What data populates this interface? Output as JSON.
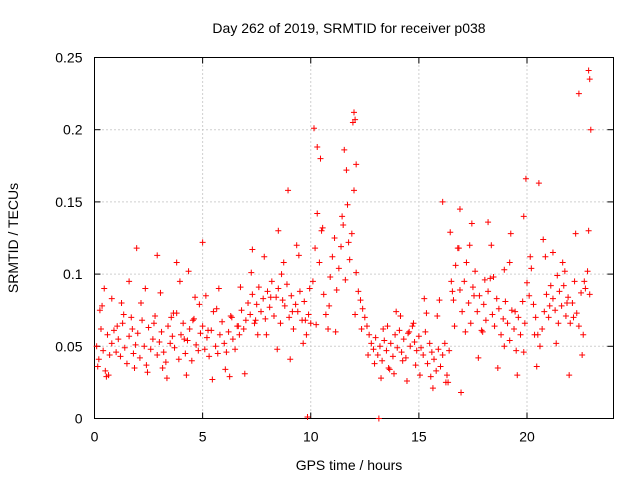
{
  "chart_data": {
    "type": "scatter",
    "title": "Day 262 of 2019, SRMTID for receiver p038",
    "xlabel": "GPS time / hours",
    "ylabel": "SRMTID / TECUs",
    "xlim": [
      0,
      24
    ],
    "ylim": [
      0,
      0.25
    ],
    "xticks": [
      0,
      5,
      10,
      15,
      20
    ],
    "xtick_labels": [
      "0",
      "5",
      "10",
      "15",
      "20"
    ],
    "yticks": [
      0,
      0.05,
      0.1,
      0.15,
      0.2,
      0.25
    ],
    "ytick_labels": [
      "0",
      "0.05",
      "0.1",
      "0.15",
      "0.2",
      "0.25"
    ],
    "grid": true,
    "legend": "none",
    "marker": "plus",
    "color": "#ff0000",
    "series": [
      {
        "name": "SRMTID",
        "x": [
          0.1,
          0.2,
          0.3,
          0.4,
          0.5,
          0.6,
          0.7,
          0.8,
          0.9,
          1.0,
          1.1,
          1.2,
          1.3,
          1.4,
          1.5,
          1.6,
          1.7,
          1.8,
          1.9,
          2.0,
          2.1,
          2.2,
          2.3,
          2.4,
          2.5,
          2.6,
          2.7,
          2.8,
          2.9,
          3.0,
          3.1,
          3.2,
          3.3,
          3.4,
          3.5,
          3.6,
          3.7,
          3.8,
          3.9,
          4.0,
          4.1,
          4.2,
          4.3,
          4.4,
          4.5,
          4.6,
          4.7,
          4.8,
          4.9,
          5.0,
          5.1,
          5.2,
          5.3,
          5.4,
          5.5,
          5.6,
          5.7,
          5.8,
          5.9,
          6.0,
          6.1,
          6.2,
          6.3,
          6.4,
          6.5,
          6.6,
          6.7,
          6.8,
          6.9,
          7.0,
          7.1,
          7.2,
          7.3,
          7.4,
          7.5,
          7.6,
          7.7,
          7.8,
          7.9,
          8.0,
          8.1,
          8.2,
          8.3,
          8.4,
          8.5,
          8.6,
          8.7,
          8.8,
          8.9,
          9.0,
          9.1,
          9.2,
          9.3,
          9.4,
          9.5,
          9.6,
          9.7,
          9.8,
          9.9,
          10.0,
          10.1,
          10.2,
          10.3,
          10.4,
          10.5,
          10.6,
          10.7,
          10.8,
          10.9,
          11.0,
          11.1,
          11.2,
          11.3,
          11.4,
          11.5,
          11.6,
          11.7,
          11.8,
          11.9,
          12.0,
          12.1,
          12.2,
          12.3,
          12.4,
          12.5,
          12.6,
          12.7,
          12.8,
          12.9,
          13.0,
          13.1,
          13.2,
          13.3,
          13.4,
          13.5,
          13.6,
          13.7,
          13.8,
          13.9,
          14.0,
          14.1,
          14.2,
          14.3,
          14.4,
          14.5,
          14.6,
          14.7,
          14.8,
          14.9,
          15.0,
          15.1,
          15.2,
          15.3,
          15.4,
          15.5,
          15.6,
          15.7,
          15.8,
          15.9,
          16.0,
          16.1,
          16.2,
          16.3,
          16.4,
          16.5,
          16.6,
          16.7,
          16.8,
          16.9,
          17.0,
          17.1,
          17.2,
          17.3,
          17.4,
          17.5,
          17.6,
          17.7,
          17.8,
          17.9,
          18.0,
          18.1,
          18.2,
          18.3,
          18.4,
          18.5,
          18.6,
          18.7,
          18.8,
          18.9,
          19.0,
          19.1,
          19.2,
          19.3,
          19.4,
          19.5,
          19.6,
          19.7,
          19.8,
          19.9,
          20.0,
          20.1,
          20.2,
          20.3,
          20.4,
          20.5,
          20.6,
          20.7,
          20.8,
          20.9,
          21.0,
          21.1,
          21.2,
          21.3,
          21.4,
          21.5,
          21.6,
          21.7,
          21.8,
          21.9,
          22.0,
          22.1,
          22.2,
          22.3,
          22.4,
          22.5,
          22.6,
          22.7,
          22.8,
          22.9,
          0.15,
          0.35,
          0.55,
          0.8,
          1.05,
          1.35,
          1.6,
          1.85,
          2.15,
          2.45,
          2.75,
          3.05,
          3.35,
          3.65,
          3.95,
          4.25,
          4.55,
          4.85,
          5.15,
          5.45,
          5.75,
          6.05,
          6.35,
          6.65,
          6.95,
          7.25,
          7.55,
          7.85,
          8.15,
          8.45,
          8.75,
          9.05,
          9.35,
          9.65,
          9.95,
          10.25,
          10.55,
          10.85,
          11.15,
          11.45,
          11.75,
          12.05,
          12.35,
          12.65,
          12.95,
          13.25,
          13.55,
          13.85,
          14.15,
          14.45,
          14.75,
          15.05,
          15.35,
          15.65,
          15.95,
          16.25,
          16.55,
          16.85,
          17.15,
          17.45,
          17.75,
          18.05,
          18.35,
          18.65,
          18.95,
          19.25,
          19.55,
          19.85,
          20.15,
          20.45,
          20.75,
          21.05,
          21.35,
          21.65,
          21.95,
          22.25,
          22.55,
          22.85,
          10.15,
          10.3,
          10.45,
          11.55,
          11.65,
          11.95,
          12.0,
          12.05,
          12.1,
          19.95,
          20.55,
          22.85,
          22.9,
          22.95,
          9.85,
          13.15,
          0.45,
          1.95,
          2.9,
          3.8,
          4.35,
          5.0,
          7.3,
          8.5,
          8.95,
          9.45,
          16.1,
          16.45,
          16.9,
          17.35,
          18.2,
          19.2,
          21.2,
          21.75,
          22.4,
          0.25,
          0.65,
          1.25,
          1.75,
          2.35,
          3.15,
          3.55,
          4.15,
          4.65,
          5.25,
          5.65,
          6.25,
          6.75,
          7.45,
          7.95,
          8.65,
          9.15,
          9.75,
          13.35,
          13.65,
          13.95,
          14.25,
          14.55,
          14.85,
          15.25,
          15.55,
          15.85,
          16.35,
          16.65,
          16.95,
          17.55,
          17.95,
          18.45,
          18.95,
          19.45,
          19.85,
          20.35,
          20.85,
          21.45,
          21.85,
          22.15,
          22.65
        ],
        "y": [
          0.05,
          0.041,
          0.062,
          0.047,
          0.033,
          0.058,
          0.044,
          0.052,
          0.061,
          0.046,
          0.055,
          0.043,
          0.066,
          0.049,
          0.038,
          0.057,
          0.07,
          0.045,
          0.051,
          0.059,
          0.042,
          0.068,
          0.05,
          0.037,
          0.063,
          0.048,
          0.055,
          0.071,
          0.044,
          0.053,
          0.06,
          0.046,
          0.039,
          0.064,
          0.052,
          0.057,
          0.049,
          0.073,
          0.041,
          0.058,
          0.066,
          0.045,
          0.054,
          0.062,
          0.04,
          0.069,
          0.051,
          0.047,
          0.059,
          0.064,
          0.048,
          0.056,
          0.043,
          0.061,
          0.074,
          0.05,
          0.045,
          0.058,
          0.067,
          0.052,
          0.046,
          0.06,
          0.071,
          0.055,
          0.048,
          0.064,
          0.058,
          0.075,
          0.062,
          0.068,
          0.08,
          0.072,
          0.086,
          0.066,
          0.079,
          0.091,
          0.074,
          0.083,
          0.069,
          0.088,
          0.077,
          0.095,
          0.071,
          0.084,
          0.09,
          0.066,
          0.082,
          0.078,
          0.093,
          0.07,
          0.085,
          0.062,
          0.079,
          0.074,
          0.088,
          0.068,
          0.081,
          0.058,
          0.072,
          0.066,
          0.095,
          0.118,
          0.142,
          0.108,
          0.13,
          0.086,
          0.072,
          0.062,
          0.098,
          0.112,
          0.125,
          0.089,
          0.104,
          0.119,
          0.134,
          0.096,
          0.148,
          0.11,
          0.128,
          0.158,
          0.101,
          0.088,
          0.082,
          0.076,
          0.07,
          0.064,
          0.058,
          0.052,
          0.048,
          0.056,
          0.044,
          0.05,
          0.04,
          0.054,
          0.047,
          0.035,
          0.052,
          0.043,
          0.058,
          0.049,
          0.061,
          0.046,
          0.055,
          0.042,
          0.059,
          0.05,
          0.064,
          0.053,
          0.047,
          0.057,
          0.049,
          0.044,
          0.06,
          0.038,
          0.052,
          0.046,
          0.041,
          0.033,
          0.048,
          0.036,
          0.044,
          0.052,
          0.03,
          0.047,
          0.095,
          0.082,
          0.106,
          0.118,
          0.089,
          0.074,
          0.095,
          0.108,
          0.08,
          0.066,
          0.091,
          0.102,
          0.074,
          0.085,
          0.061,
          0.079,
          0.068,
          0.088,
          0.097,
          0.072,
          0.064,
          0.083,
          0.076,
          0.058,
          0.069,
          0.081,
          0.066,
          0.054,
          0.075,
          0.062,
          0.047,
          0.07,
          0.058,
          0.081,
          0.066,
          0.094,
          0.085,
          0.104,
          0.079,
          0.07,
          0.058,
          0.05,
          0.062,
          0.074,
          0.086,
          0.07,
          0.092,
          0.083,
          0.075,
          0.099,
          0.088,
          0.078,
          0.092,
          0.071,
          0.084,
          0.066,
          0.08,
          0.095,
          0.073,
          0.064,
          0.087,
          0.058,
          0.09,
          0.102,
          0.086,
          0.036,
          0.078,
          0.029,
          0.083,
          0.064,
          0.072,
          0.095,
          0.035,
          0.08,
          0.032,
          0.066,
          0.087,
          0.028,
          0.073,
          0.095,
          0.03,
          0.068,
          0.079,
          0.085,
          0.027,
          0.09,
          0.034,
          0.07,
          0.064,
          0.031,
          0.101,
          0.058,
          0.112,
          0.084,
          0.048,
          0.108,
          0.041,
          0.12,
          0.052,
          0.09,
          0.065,
          0.132,
          0.078,
          0.06,
          0.14,
          0.122,
          0.072,
          0.062,
          0.044,
          0.038,
          0.028,
          0.064,
          0.031,
          0.071,
          0.026,
          0.066,
          0.03,
          0.073,
          0.021,
          0.082,
          0.025,
          0.088,
          0.118,
          0.06,
          0.135,
          0.042,
          0.096,
          0.12,
          0.035,
          0.103,
          0.128,
          0.03,
          0.14,
          0.112,
          0.036,
          0.124,
          0.078,
          0.052,
          0.108,
          0.03,
          0.128,
          0.044,
          0.13,
          0.201,
          0.188,
          0.18,
          0.186,
          0.172,
          0.205,
          0.212,
          0.207,
          0.176,
          0.166,
          0.163,
          0.241,
          0.235,
          0.2,
          0.001,
          0.0,
          0.09,
          0.118,
          0.113,
          0.108,
          0.102,
          0.122,
          0.117,
          0.13,
          0.158,
          0.113,
          0.15,
          0.129,
          0.145,
          0.12,
          0.136,
          0.108,
          0.115,
          0.102,
          0.225,
          0.075,
          0.03,
          0.08,
          0.062,
          0.09,
          0.035,
          0.07,
          0.055,
          0.084,
          0.061,
          0.076,
          0.029,
          0.091,
          0.068,
          0.058,
          0.1,
          0.074,
          0.068,
          0.062,
          0.034,
          0.074,
          0.04,
          0.06,
          0.037,
          0.083,
          0.029,
          0.071,
          0.025,
          0.064,
          0.018,
          0.085,
          0.06,
          0.098,
          0.05,
          0.074,
          0.046,
          0.058,
          0.112,
          0.066,
          0.08,
          0.07,
          0.095
        ]
      }
    ]
  }
}
